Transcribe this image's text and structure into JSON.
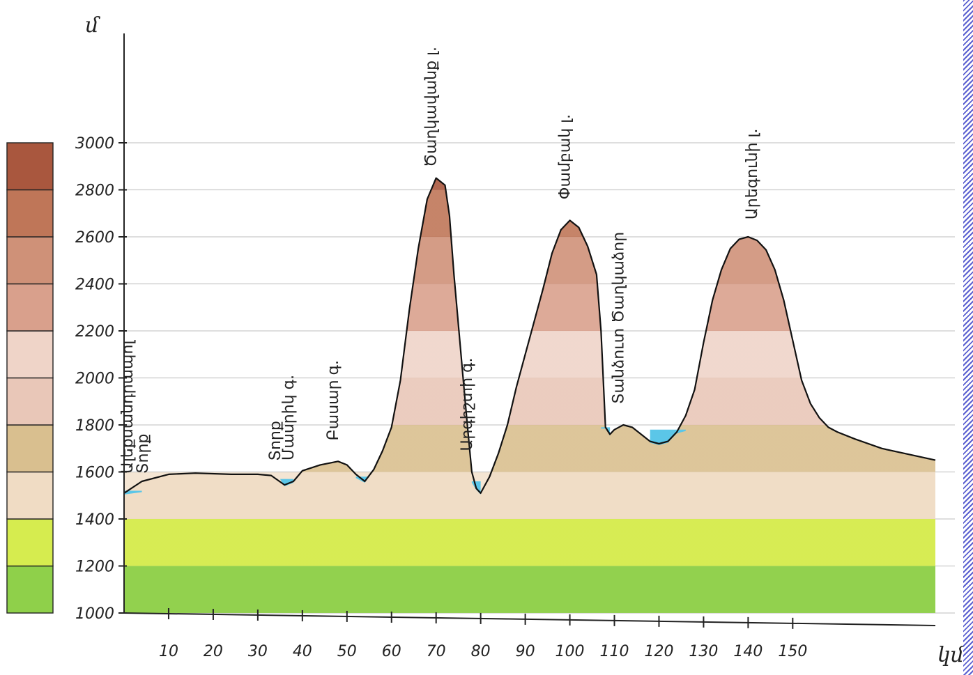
{
  "chart_data": {
    "type": "area",
    "title": "",
    "ylabel": "մ",
    "xlabel": "կմ",
    "ylim": [
      1000,
      3000
    ],
    "xlim": [
      0,
      182
    ],
    "y_ticks": [
      "3000",
      "2800",
      "2600",
      "2400",
      "2200",
      "2000",
      "1800",
      "1600",
      "1400",
      "1200",
      "1000"
    ],
    "x_ticks": [
      "10",
      "20",
      "30",
      "40",
      "50",
      "60",
      "70",
      "80",
      "90",
      "100",
      "110",
      "120",
      "130",
      "140",
      "150"
    ],
    "grid": true,
    "legend": "left",
    "elevation_bands": [
      {
        "from": 1000,
        "to": 1200,
        "color": "#8fd04a"
      },
      {
        "from": 1200,
        "to": 1400,
        "color": "#d6ec4f"
      },
      {
        "from": 1400,
        "to": 1600,
        "color": "#f0dcc4"
      },
      {
        "from": 1600,
        "to": 1800,
        "color": "#d9bf8f"
      },
      {
        "from": 1800,
        "to": 2000,
        "color": "#e9c7b8"
      },
      {
        "from": 2000,
        "to": 2200,
        "color": "#efd4c8"
      },
      {
        "from": 2200,
        "to": 2400,
        "color": "#d9a08c"
      },
      {
        "from": 2400,
        "to": 2600,
        "color": "#cf9178"
      },
      {
        "from": 2600,
        "to": 2800,
        "color": "#bf7658"
      },
      {
        "from": 2800,
        "to": 3000,
        "color": "#a9573e"
      }
    ],
    "profile": {
      "x": [
        0,
        4,
        10,
        16,
        24,
        30,
        33,
        36,
        38,
        40,
        44,
        48,
        50,
        52,
        54,
        56,
        58,
        60,
        62,
        64,
        66,
        68,
        70,
        72,
        73,
        74,
        76,
        77,
        78,
        79,
        80,
        82,
        84,
        86,
        88,
        90,
        92,
        94,
        96,
        98,
        100,
        102,
        104,
        106,
        107,
        108,
        109,
        110,
        112,
        114,
        116,
        118,
        120,
        122,
        124,
        126,
        128,
        130,
        132,
        134,
        136,
        138,
        140,
        142,
        144,
        146,
        148,
        150,
        152,
        154,
        156,
        158,
        160,
        164,
        170,
        176,
        182
      ],
      "y": [
        1510,
        1560,
        1590,
        1595,
        1590,
        1590,
        1585,
        1545,
        1560,
        1605,
        1630,
        1645,
        1630,
        1590,
        1560,
        1610,
        1690,
        1790,
        1990,
        2290,
        2550,
        2760,
        2850,
        2820,
        2690,
        2440,
        2010,
        1800,
        1600,
        1530,
        1510,
        1580,
        1680,
        1800,
        1960,
        2100,
        2240,
        2380,
        2530,
        2630,
        2670,
        2640,
        2560,
        2440,
        2200,
        1790,
        1760,
        1780,
        1800,
        1790,
        1760,
        1730,
        1720,
        1730,
        1770,
        1840,
        1950,
        2150,
        2330,
        2460,
        2550,
        2590,
        2600,
        2585,
        2545,
        2460,
        2330,
        2160,
        1990,
        1890,
        1830,
        1790,
        1770,
        1740,
        1700,
        1675,
        1650
      ]
    },
    "lakes": [
      {
        "x_from": 0,
        "x_to": 4,
        "level": 1520
      },
      {
        "x_from": 35,
        "x_to": 38,
        "level": 1570
      },
      {
        "x_from": 52,
        "x_to": 55,
        "level": 1580
      },
      {
        "x_from": 78,
        "x_to": 80,
        "level": 1560
      },
      {
        "x_from": 107,
        "x_to": 109,
        "level": 1790
      },
      {
        "x_from": 118,
        "x_to": 126,
        "level": 1780
      }
    ],
    "annotations": [
      {
        "text": "Տորք",
        "x": 35
      },
      {
        "text": "Մասրիկ գ.",
        "x": 38
      },
      {
        "text": "Բասար գ.",
        "x": 48
      },
      {
        "text": "Ծաղկավանք լ.",
        "x": 70
      },
      {
        "text": "Արգիշտի գ.",
        "x": 78
      },
      {
        "text": "Փամբակ լ.",
        "x": 100
      },
      {
        "text": "Տանձուտ Ծաղկաձոր",
        "x": 112
      },
      {
        "text": "Արեգունի լ.",
        "x": 142
      }
    ],
    "left_labels": [
      "Ալեքսանդրապոլ",
      "Տորք"
    ]
  }
}
